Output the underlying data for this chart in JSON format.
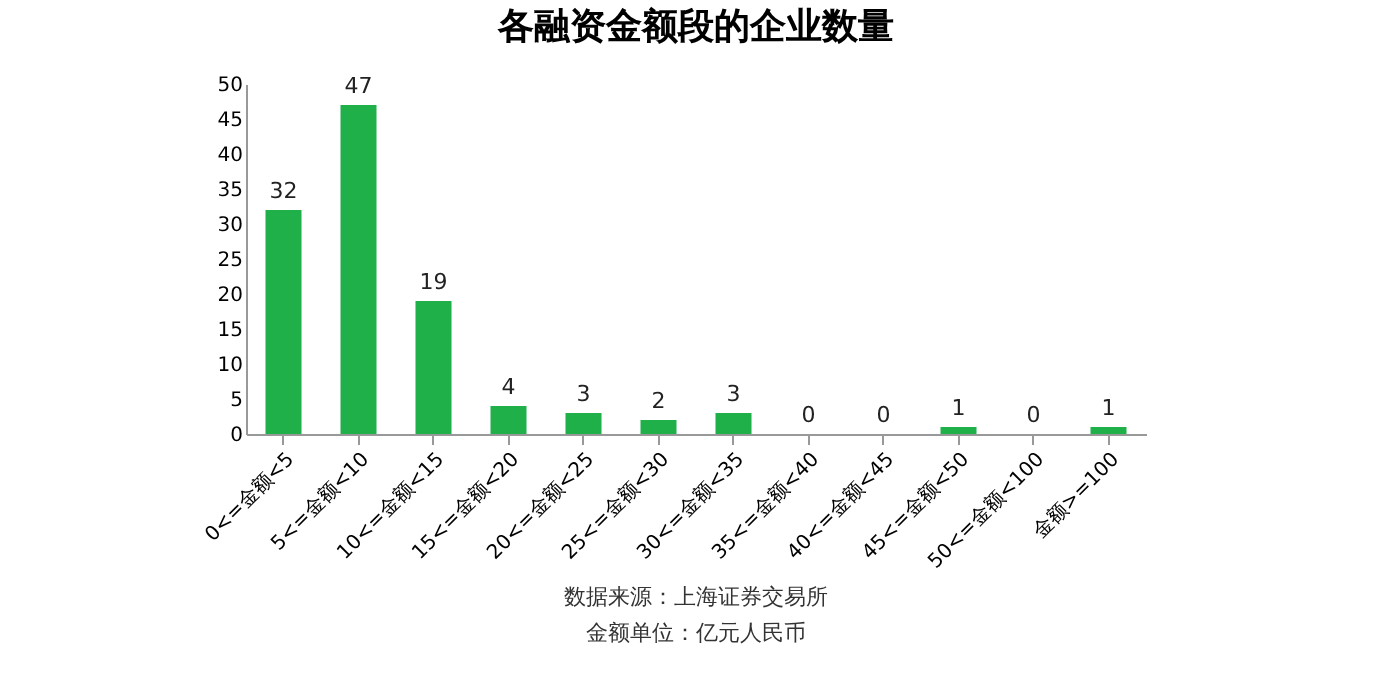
{
  "chart_data": {
    "type": "bar",
    "title": "各融资金额段的企业数量",
    "categories": [
      "0<=金额<5",
      "5<=金额<10",
      "10<=金额<15",
      "15<=金额<20",
      "20<=金额<25",
      "25<=金额<30",
      "30<=金额<35",
      "35<=金额<40",
      "40<=金额<45",
      "45<=金额<50",
      "50<=金额<100",
      "金额>=100"
    ],
    "values": [
      32,
      47,
      19,
      4,
      3,
      2,
      3,
      0,
      0,
      1,
      0,
      1
    ],
    "color": "#1fb04a",
    "ylim": [
      0,
      50
    ],
    "yticks": [
      0,
      5,
      10,
      15,
      20,
      25,
      30,
      35,
      40,
      45,
      50
    ],
    "grid": false,
    "data_labels": true,
    "annotations": [
      "数据来源：上海证券交易所",
      "金额单位：亿元人民币"
    ]
  }
}
